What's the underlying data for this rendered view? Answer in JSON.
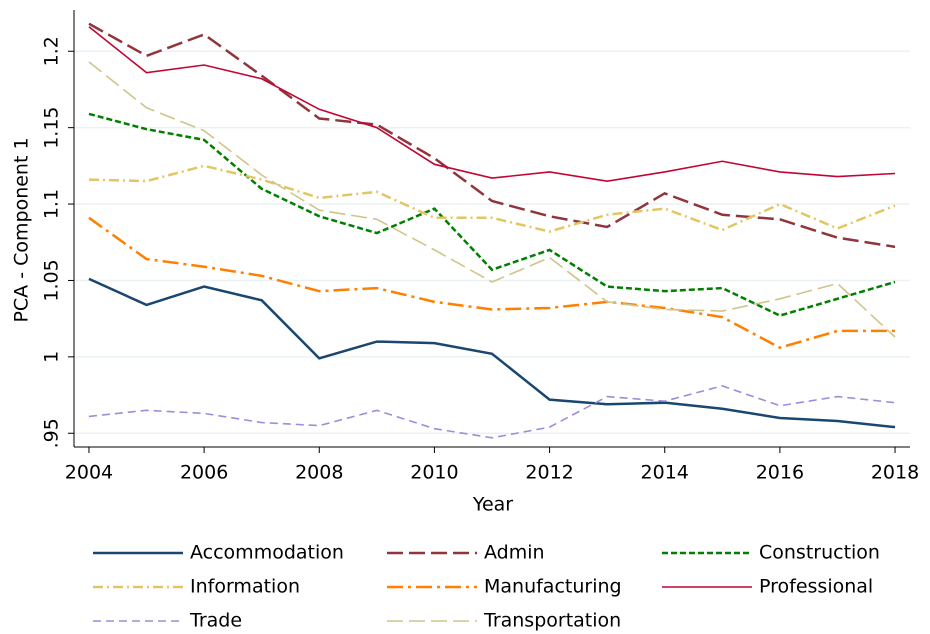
{
  "chart_data": {
    "type": "line",
    "x_label": "Year",
    "y_label": "PCA - Component 1",
    "x": [
      2004,
      2005,
      2006,
      2007,
      2008,
      2009,
      2010,
      2011,
      2012,
      2013,
      2014,
      2015,
      2016,
      2017,
      2018
    ],
    "xlim": [
      2003.74,
      2018.26
    ],
    "xticks": [
      2004,
      2006,
      2008,
      2010,
      2012,
      2014,
      2016,
      2018
    ],
    "ylim": [
      0.941,
      1.227
    ],
    "yticks": [
      {
        "value": 0.95,
        "label": ".95"
      },
      1,
      1.05,
      1.1,
      1.15,
      1.2
    ],
    "grid": true,
    "legend": "bottom",
    "series": [
      {
        "name": "Accommodation",
        "color": "#1a476f",
        "dash": "solid",
        "width": 2.5,
        "values": [
          1.051,
          1.034,
          1.046,
          1.037,
          0.999,
          1.01,
          1.009,
          1.002,
          0.972,
          0.969,
          0.97,
          0.966,
          0.96,
          0.958,
          0.954
        ]
      },
      {
        "name": "Admin",
        "color": "#90353b",
        "dash": "longdash",
        "width": 2.5,
        "values": [
          1.218,
          1.197,
          1.211,
          1.184,
          1.156,
          1.152,
          1.13,
          1.102,
          1.092,
          1.085,
          1.107,
          1.093,
          1.09,
          1.078,
          1.072
        ]
      },
      {
        "name": "Construction",
        "color": "#007f00",
        "dash": "shortdash",
        "width": 2.5,
        "values": [
          1.159,
          1.149,
          1.142,
          1.11,
          1.092,
          1.081,
          1.097,
          1.057,
          1.07,
          1.046,
          1.043,
          1.045,
          1.027,
          1.038,
          1.049
        ]
      },
      {
        "name": "Information",
        "color": "#e2c664",
        "dash": "dashdot",
        "width": 2.5,
        "values": [
          1.116,
          1.115,
          1.125,
          1.116,
          1.104,
          1.108,
          1.091,
          1.091,
          1.082,
          1.093,
          1.097,
          1.083,
          1.1,
          1.084,
          1.099
        ]
      },
      {
        "name": "Manufacturing",
        "color": "#ff8000",
        "dash": "longdashdot",
        "width": 2.5,
        "values": [
          1.091,
          1.064,
          1.059,
          1.053,
          1.043,
          1.045,
          1.036,
          1.031,
          1.032,
          1.036,
          1.032,
          1.026,
          1.006,
          1.017,
          1.017
        ]
      },
      {
        "name": "Professional",
        "color": "#c10534",
        "dash": "solid",
        "width": 1.6,
        "values": [
          1.216,
          1.186,
          1.191,
          1.182,
          1.162,
          1.15,
          1.126,
          1.117,
          1.121,
          1.115,
          1.121,
          1.128,
          1.121,
          1.118,
          1.12
        ]
      },
      {
        "name": "Trade",
        "color": "#9a8fd9",
        "dash": "dash",
        "width": 1.6,
        "values": [
          0.961,
          0.965,
          0.963,
          0.957,
          0.955,
          0.965,
          0.953,
          0.947,
          0.954,
          0.974,
          0.971,
          0.981,
          0.968,
          0.974,
          0.97
        ]
      },
      {
        "name": "Transportation",
        "color": "#cfc48a",
        "dash": "longdash",
        "width": 1.6,
        "values": [
          1.193,
          1.163,
          1.148,
          1.119,
          1.096,
          1.09,
          1.07,
          1.049,
          1.065,
          1.036,
          1.031,
          1.03,
          1.038,
          1.048,
          1.013
        ]
      }
    ]
  }
}
